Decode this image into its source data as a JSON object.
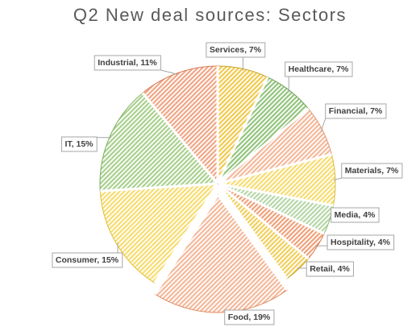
{
  "chart_data": {
    "type": "pie",
    "title": "Q2 New deal sources: Sectors",
    "slices": [
      {
        "name": "Services",
        "value": 7,
        "label": "Services, 7%",
        "color": "#f2c94c",
        "stroke": "#c9a227"
      },
      {
        "name": "Healthcare",
        "value": 7,
        "label": "Healthcare, 7%",
        "color": "#93c47d",
        "stroke": "#6a9f4f"
      },
      {
        "name": "Financial",
        "value": 7,
        "label": "Financial, 7%",
        "color": "#f4b89a",
        "stroke": "#e39a75"
      },
      {
        "name": "Materials",
        "value": 7,
        "label": "Materials, 7%",
        "color": "#f7dc6f",
        "stroke": "#d9bd45"
      },
      {
        "name": "Media",
        "value": 4,
        "label": "Media, 4%",
        "color": "#b6d7a8",
        "stroke": "#8dbb79"
      },
      {
        "name": "Hospitality",
        "value": 4,
        "label": "Hospitality, 4%",
        "color": "#f0a07a",
        "stroke": "#d9784a"
      },
      {
        "name": "Retail",
        "value": 4,
        "label": "Retail, 4%",
        "color": "#f1cf5a",
        "stroke": "#c9a227"
      },
      {
        "name": "Food",
        "value": 19,
        "label": "Food, 19%",
        "color": "#f4b89a",
        "stroke": "#e08a5e",
        "exploded": true
      },
      {
        "name": "Consumer",
        "value": 15,
        "label": "Consumer, 15%",
        "color": "#f7dc6f",
        "stroke": "#e0bf3a"
      },
      {
        "name": "IT",
        "value": 15,
        "label": "IT, 15%",
        "color": "#a9d08e",
        "stroke": "#7cae5c"
      },
      {
        "name": "Industrial",
        "value": 11,
        "label": "Industrial, 11%",
        "color": "#f0a585",
        "stroke": "#d97a52"
      }
    ],
    "legend": "none"
  }
}
